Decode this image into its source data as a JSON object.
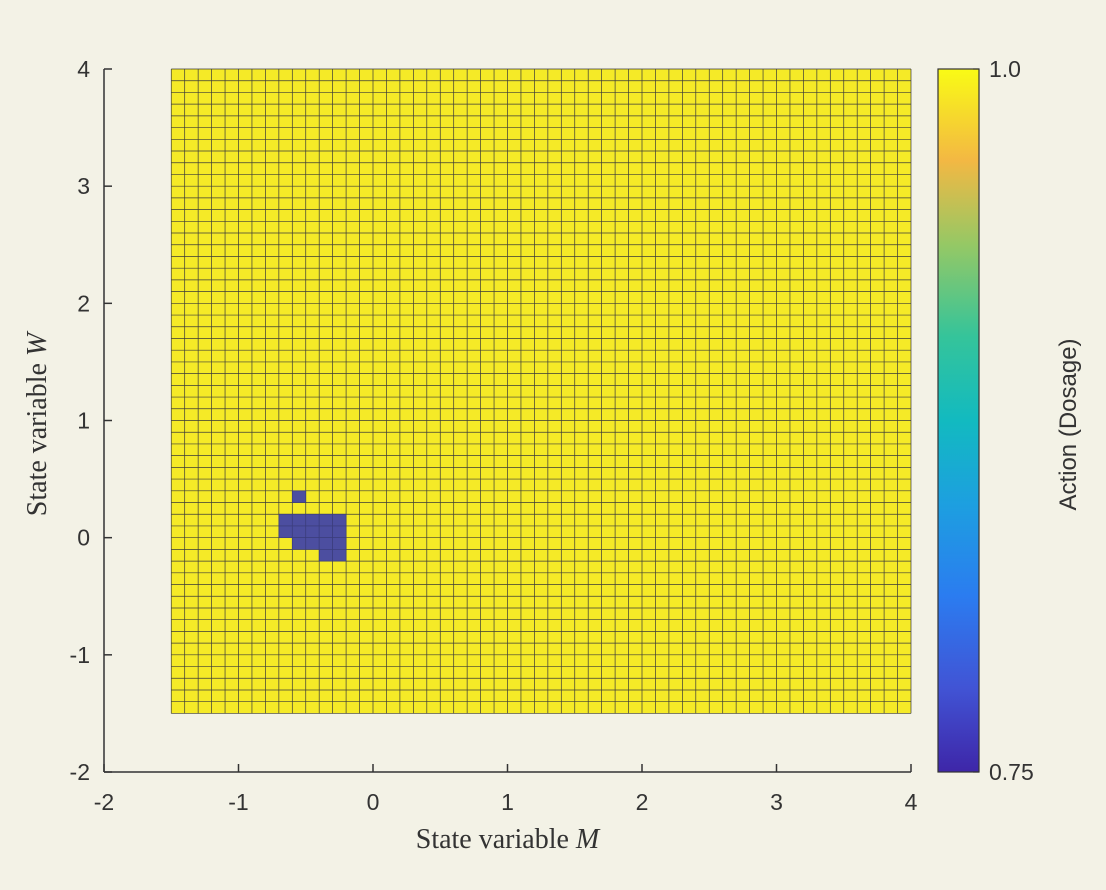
{
  "chart_data": {
    "type": "heatmap",
    "title": "",
    "xlabel": "State variable M",
    "ylabel": "State variable W",
    "xlim": [
      -2,
      4
    ],
    "ylim": [
      -2,
      4
    ],
    "x_ticks": [
      -2,
      -1,
      0,
      1,
      2,
      3,
      4
    ],
    "y_ticks": [
      -2,
      -1,
      0,
      1,
      2,
      3,
      4
    ],
    "x_tick_labels": [
      "-2",
      "-1",
      "0",
      "1",
      "2",
      "3",
      "4"
    ],
    "y_tick_labels": [
      "-2",
      "-1",
      "0",
      "1",
      "2",
      "3",
      "4"
    ],
    "grid": {
      "x_min": -1.5,
      "x_max": 4,
      "y_min": -1.5,
      "y_max": 4,
      "columns": 55,
      "rows": 55,
      "default_value": 1.0
    },
    "low_value_cells": {
      "value": 0.75,
      "cells": [
        {
          "x": -0.6,
          "y": 0.3
        },
        {
          "x": -0.7,
          "y": 0.1
        },
        {
          "x": -0.6,
          "y": 0.1
        },
        {
          "x": -0.5,
          "y": 0.1
        },
        {
          "x": -0.4,
          "y": 0.1
        },
        {
          "x": -0.3,
          "y": 0.1
        },
        {
          "x": -0.7,
          "y": 0.0
        },
        {
          "x": -0.6,
          "y": 0.0
        },
        {
          "x": -0.5,
          "y": 0.0
        },
        {
          "x": -0.4,
          "y": 0.0
        },
        {
          "x": -0.3,
          "y": 0.0
        },
        {
          "x": -0.6,
          "y": -0.1
        },
        {
          "x": -0.5,
          "y": -0.1
        },
        {
          "x": -0.4,
          "y": -0.1
        },
        {
          "x": -0.3,
          "y": -0.1
        },
        {
          "x": -0.4,
          "y": -0.2
        },
        {
          "x": -0.3,
          "y": -0.2
        }
      ]
    },
    "colorbar": {
      "label": "Action (Dosage)",
      "min": 0.75,
      "max": 1.0,
      "tick_labels": [
        "1.0",
        "0.75"
      ],
      "colormap": "parula"
    },
    "colors": {
      "high": "#f5ea27",
      "low": "#4c4ea0",
      "cell_edge": "#3a3a3a",
      "axis": "#333333",
      "background": "#f3f2e6"
    }
  }
}
